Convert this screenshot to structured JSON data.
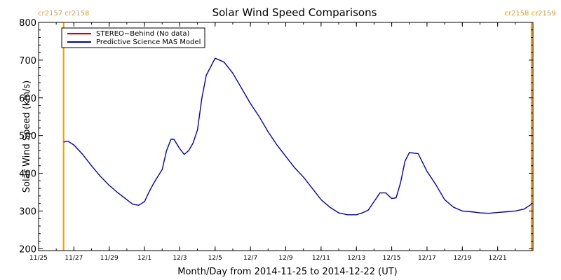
{
  "colors": {
    "stereo": "#cc0000",
    "model": "#0000cc",
    "carrington": "#ff9900",
    "axis": "#000000"
  },
  "chart_data": {
    "type": "line",
    "title": "Solar Wind Speed Comparisons",
    "xlabel": "Month/Day from 2014-11-25 to 2014-12-22 (UT)",
    "ylabel": "Solar Wind Speed (km/s)",
    "xlim": [
      "2014-11-25",
      "2014-12-23"
    ],
    "ylim": [
      195,
      800
    ],
    "y_ticks": [
      200,
      300,
      400,
      500,
      600,
      700,
      800
    ],
    "x_ticks": [
      {
        "date": "2014-11-25",
        "label": "11/25"
      },
      {
        "date": "2014-11-27",
        "label": "11/27"
      },
      {
        "date": "2014-11-29",
        "label": "11/29"
      },
      {
        "date": "2014-12-01",
        "label": "12/1"
      },
      {
        "date": "2014-12-03",
        "label": "12/3"
      },
      {
        "date": "2014-12-05",
        "label": "12/5"
      },
      {
        "date": "2014-12-07",
        "label": "12/7"
      },
      {
        "date": "2014-12-09",
        "label": "12/9"
      },
      {
        "date": "2014-12-11",
        "label": "12/11"
      },
      {
        "date": "2014-12-13",
        "label": "12/13"
      },
      {
        "date": "2014-12-15",
        "label": "12/15"
      },
      {
        "date": "2014-12-17",
        "label": "12/17"
      },
      {
        "date": "2014-12-19",
        "label": "12/19"
      },
      {
        "date": "2014-12-21",
        "label": "12/21"
      }
    ],
    "carrington_markers": [
      {
        "date": "2014-11-26 10:00",
        "label": "cr2157 cr2158"
      },
      {
        "date": "2014-12-22 22:00",
        "label": "cr2158 cr2159"
      }
    ],
    "legend_position": "top-left",
    "grid": false,
    "series": [
      {
        "name": "STEREO−Behind (No data)",
        "color_key": "stereo",
        "x": [],
        "y": []
      },
      {
        "name": "Predictive Science MAS Model",
        "color_key": "model",
        "x": [
          "2014-11-26 10:00",
          "2014-11-26 16:00",
          "2014-11-27 00:00",
          "2014-11-27 12:00",
          "2014-11-28 00:00",
          "2014-11-28 12:00",
          "2014-11-29 00:00",
          "2014-11-29 12:00",
          "2014-11-30 00:00",
          "2014-11-30 08:00",
          "2014-11-30 16:00",
          "2014-12-01 00:00",
          "2014-12-01 06:00",
          "2014-12-01 12:00",
          "2014-12-01 16:00",
          "2014-12-02 00:00",
          "2014-12-02 06:00",
          "2014-12-02 12:00",
          "2014-12-02 16:00",
          "2014-12-03 00:00",
          "2014-12-03 06:00",
          "2014-12-03 12:00",
          "2014-12-03 18:00",
          "2014-12-04 00:00",
          "2014-12-04 06:00",
          "2014-12-04 12:00",
          "2014-12-05 00:00",
          "2014-12-05 12:00",
          "2014-12-06 00:00",
          "2014-12-06 12:00",
          "2014-12-07 00:00",
          "2014-12-07 12:00",
          "2014-12-08 00:00",
          "2014-12-08 12:00",
          "2014-12-09 00:00",
          "2014-12-09 12:00",
          "2014-12-10 00:00",
          "2014-12-10 12:00",
          "2014-12-11 00:00",
          "2014-12-11 12:00",
          "2014-12-12 00:00",
          "2014-12-12 12:00",
          "2014-12-13 00:00",
          "2014-12-13 08:00",
          "2014-12-13 16:00",
          "2014-12-14 00:00",
          "2014-12-14 08:00",
          "2014-12-14 16:00",
          "2014-12-15 00:00",
          "2014-12-15 06:00",
          "2014-12-15 12:00",
          "2014-12-15 18:00",
          "2014-12-16 00:00",
          "2014-12-16 12:00",
          "2014-12-17 00:00",
          "2014-12-17 12:00",
          "2014-12-18 00:00",
          "2014-12-18 12:00",
          "2014-12-19 00:00",
          "2014-12-19 12:00",
          "2014-12-20 00:00",
          "2014-12-20 12:00",
          "2014-12-21 00:00",
          "2014-12-21 12:00",
          "2014-12-22 00:00",
          "2014-12-22 12:00",
          "2014-12-22 22:00"
        ],
        "y": [
          483,
          485,
          475,
          450,
          420,
          392,
          368,
          348,
          330,
          318,
          315,
          325,
          350,
          372,
          385,
          410,
          460,
          490,
          490,
          465,
          450,
          460,
          480,
          515,
          600,
          660,
          705,
          695,
          665,
          625,
          585,
          550,
          510,
          475,
          445,
          415,
          390,
          360,
          330,
          310,
          295,
          290,
          290,
          295,
          302,
          325,
          348,
          348,
          333,
          335,
          375,
          432,
          455,
          452,
          405,
          370,
          330,
          310,
          300,
          298,
          295,
          294,
          296,
          298,
          300,
          305,
          318
        ]
      }
    ]
  }
}
